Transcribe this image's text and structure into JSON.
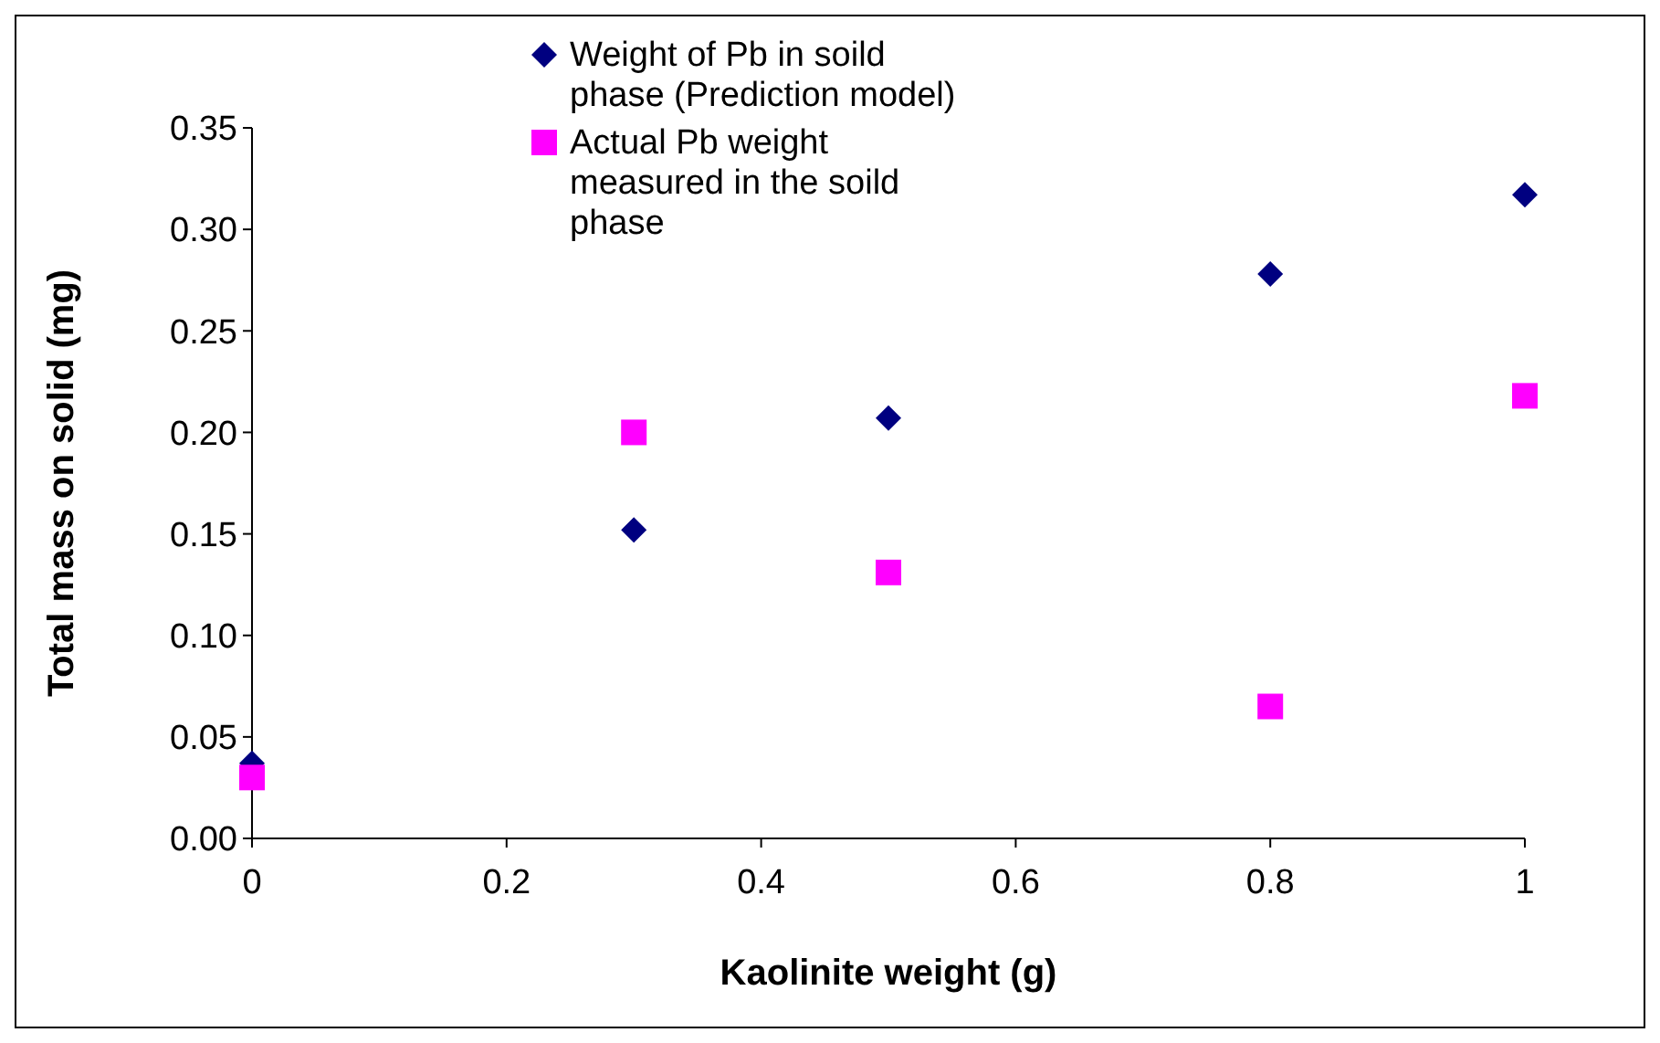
{
  "chart_data": {
    "type": "scatter",
    "xlabel": "Kaolinite weight (g)",
    "ylabel": "Total mass on solid (mg)",
    "xlim": [
      0,
      1
    ],
    "xticks": [
      0,
      0.2,
      0.4,
      0.6,
      0.8,
      1
    ],
    "ylim": [
      0,
      0.35
    ],
    "yticks": [
      {
        "value": 0,
        "label": "0.00"
      },
      {
        "value": 0.05,
        "label": "0.05"
      },
      {
        "value": 0.1,
        "label": "0.10"
      },
      {
        "value": 0.15,
        "label": "0.15"
      },
      {
        "value": 0.2,
        "label": "0.20"
      },
      {
        "value": 0.25,
        "label": "0.25"
      },
      {
        "value": 0.3,
        "label": "0.30"
      },
      {
        "value": 0.35,
        "label": "0.35"
      }
    ],
    "x": [
      0,
      0.3,
      0.5,
      0.8,
      1
    ],
    "series": [
      {
        "name": "Weight of Pb in soild phase (Prediction model)",
        "color": "#000080",
        "marker": "diamond",
        "values": [
          0.037,
          0.152,
          0.207,
          0.278,
          0.317
        ]
      },
      {
        "name": "Actual Pb weight measured in the soild phase",
        "color": "#ff00ff",
        "marker": "square",
        "values": [
          0.03,
          0.2,
          0.131,
          0.065,
          0.218
        ]
      }
    ],
    "legend": "top",
    "grid": false
  }
}
